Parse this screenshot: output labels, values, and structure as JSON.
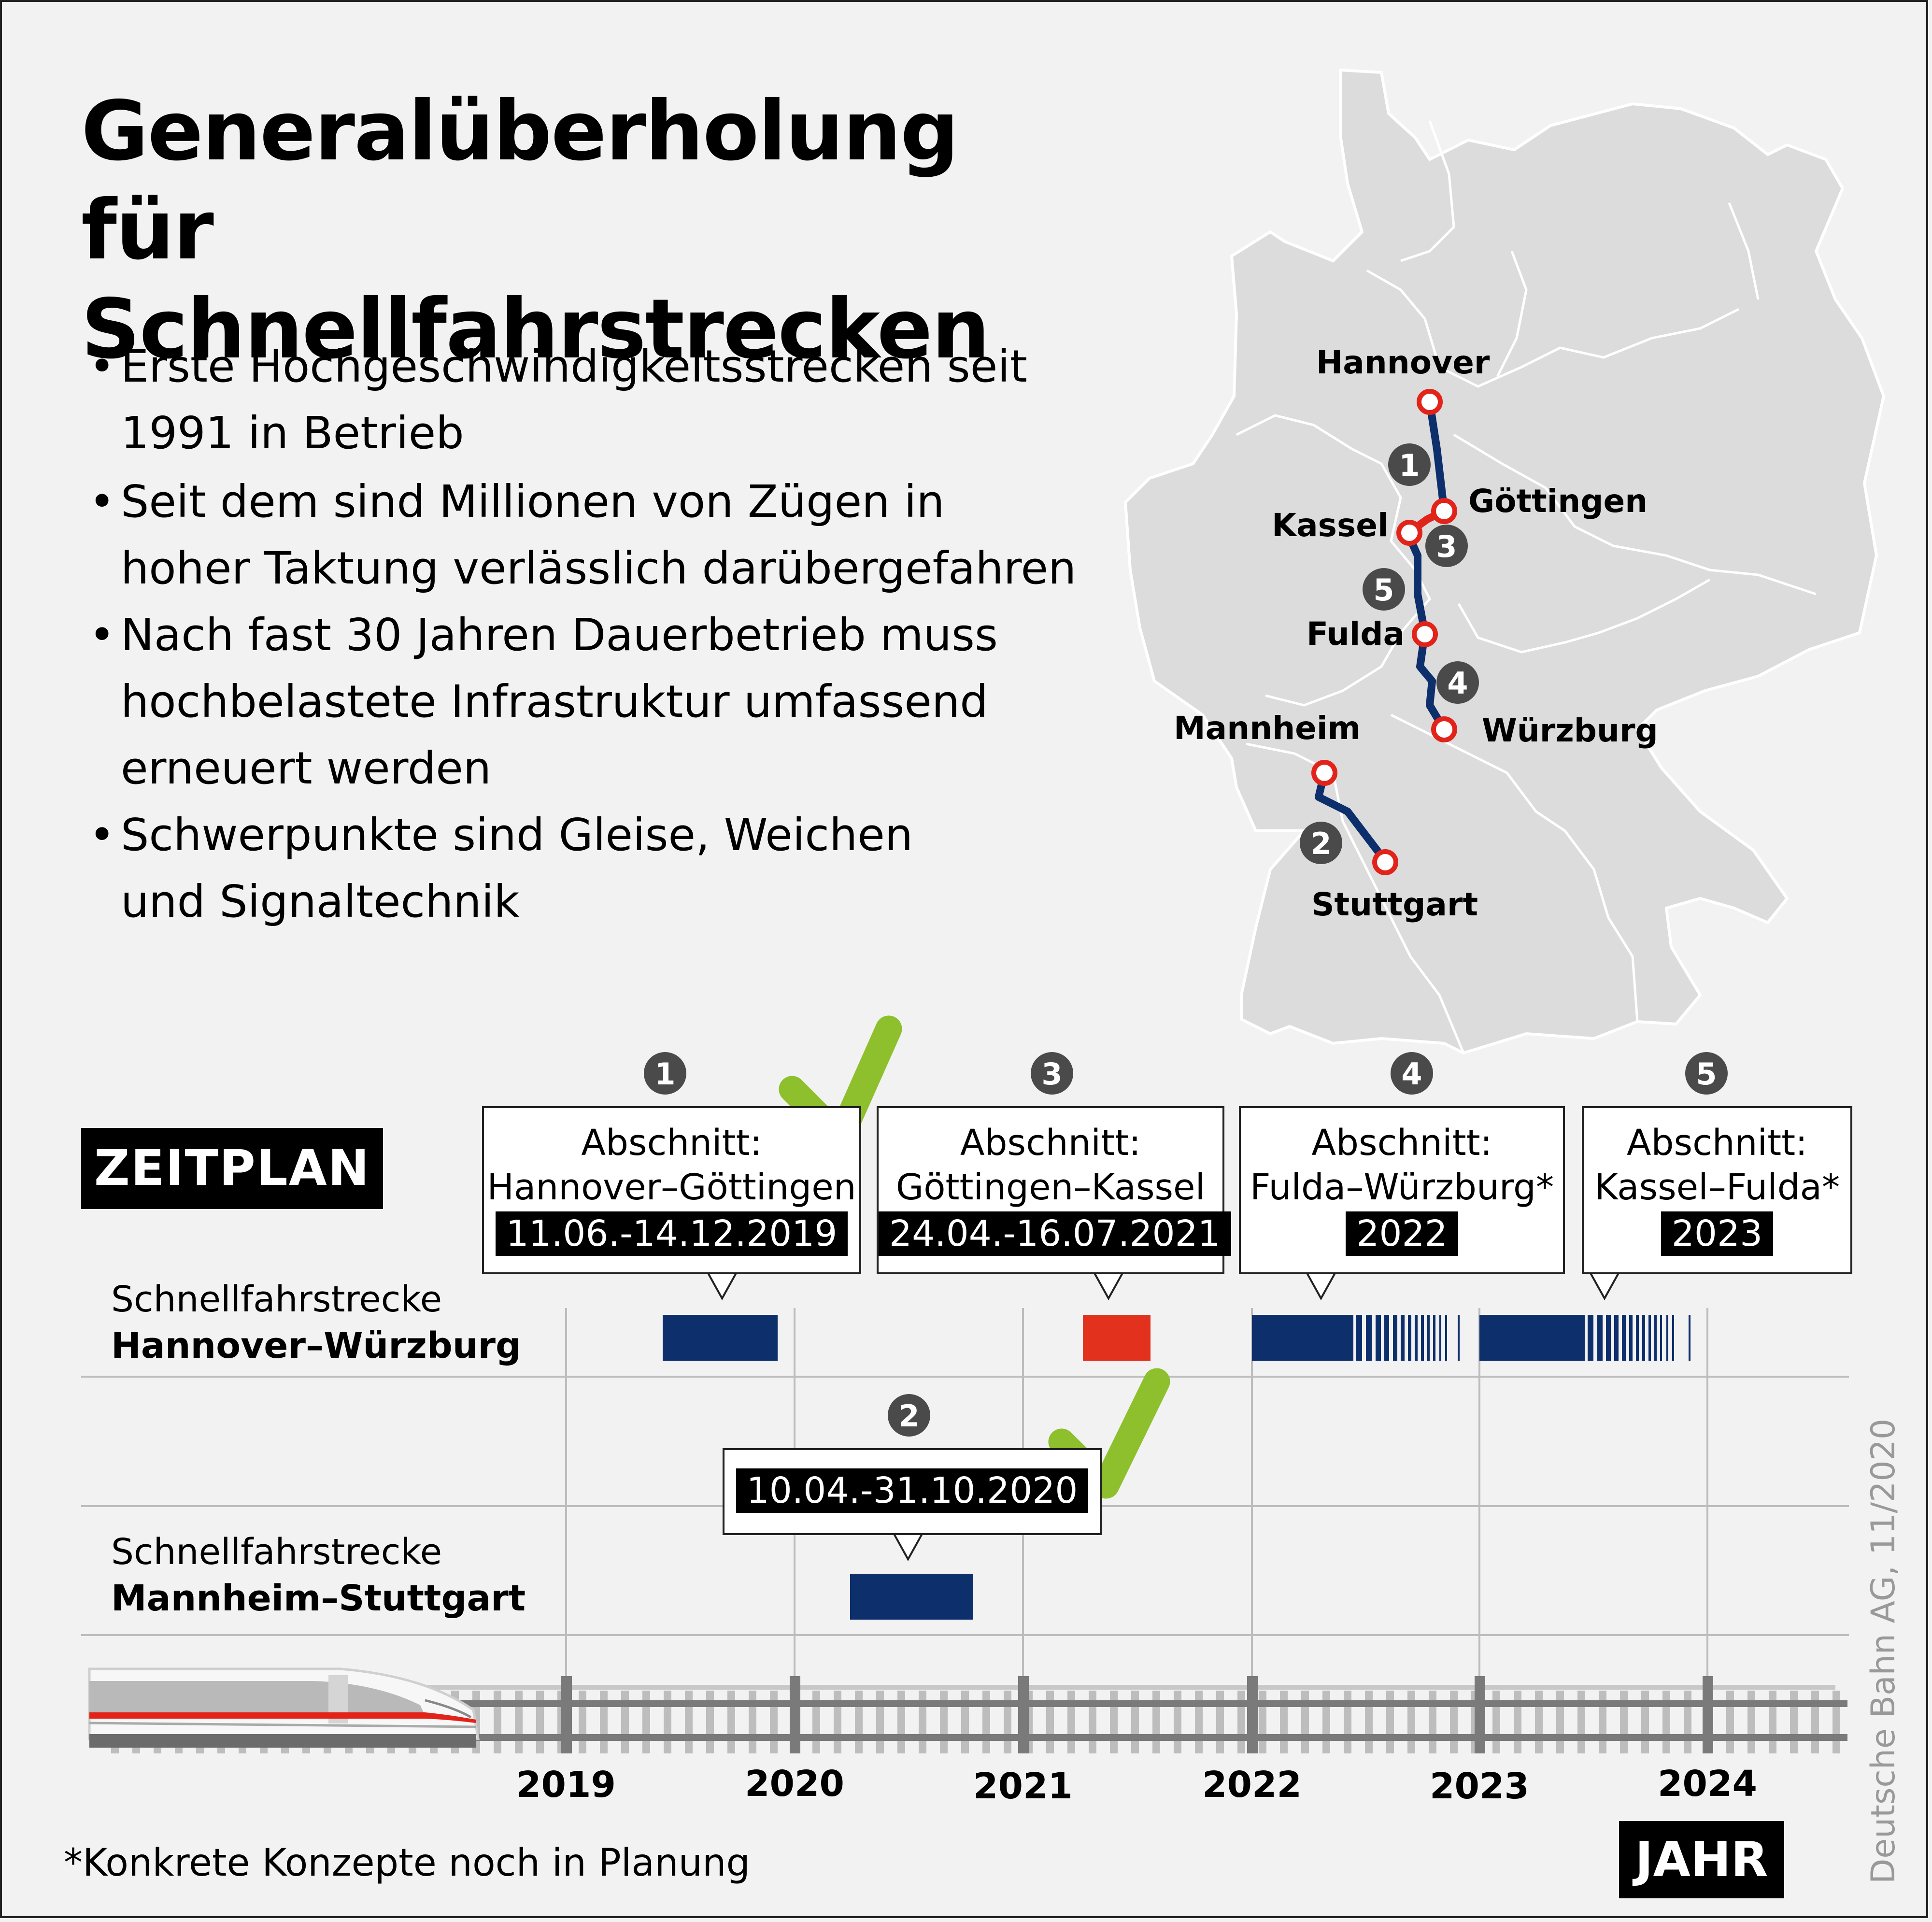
{
  "title": {
    "line1": "Generalüberholung für",
    "line2": "Schnellfahrstrecken"
  },
  "bullets": [
    {
      "line1": "Erste Hochgeschwindigkeitsstrecken seit",
      "line2": "1991 in Betrieb"
    },
    {
      "line1": "Seit dem sind Millionen von Zügen in",
      "line2": "hoher Taktung verlässlich darübergefahren"
    },
    {
      "line1": "Nach fast 30 Jahren Dauerbetrieb muss",
      "line2": "hochbelastete Infrastruktur umfassend",
      "line3": "erneuert werden"
    },
    {
      "line1": "Schwerpunkte sind Gleise, Weichen",
      "line2": "und Signaltechnik"
    }
  ],
  "map": {
    "cities": {
      "hannover": "Hannover",
      "goettingen": "Göttingen",
      "kassel": "Kassel",
      "fulda": "Fulda",
      "wuerzburg": "Würzburg",
      "mannheim": "Mannheim",
      "stuttgart": "Stuttgart"
    },
    "section_numbers": [
      "1",
      "2",
      "3",
      "4",
      "5"
    ],
    "route_color": "#0d2f6b",
    "city_marker_color": "#e2231a",
    "country_fill": "#dcdcdc"
  },
  "timeline": {
    "heading": "ZEITPLAN",
    "axis_label": "JAHR",
    "years": [
      "2019",
      "2020",
      "2021",
      "2022",
      "2023",
      "2024"
    ],
    "rows": {
      "row1": {
        "line1": "Schnellfahrstrecke",
        "line2": "Hannover–Würzburg"
      },
      "row2": {
        "line1": "Schnellfahrstrecke",
        "line2": "Mannheim–Stuttgart"
      }
    },
    "callouts": [
      {
        "number": "1",
        "line1": "Abschnitt:",
        "line2": "Hannover–Göttingen",
        "date": "11.06.-14.12.2019",
        "done": true
      },
      {
        "number": "3",
        "line1": "Abschnitt:",
        "line2": "Göttingen–Kassel",
        "date": "24.04.-16.07.2021",
        "done": true
      },
      {
        "number": "4",
        "line1": "Abschnitt:",
        "line2": "Fulda–Würzburg*",
        "date": "2022",
        "done": false
      },
      {
        "number": "5",
        "line1": "Abschnitt:",
        "line2": "Kassel–Fulda*",
        "date": "2023",
        "done": false
      },
      {
        "number": "2",
        "date": "10.04.-31.10.2020",
        "done": true
      }
    ],
    "colors": {
      "bar": "#0d2f6b",
      "active_bar": "#e2311d",
      "check": "#8dc02c",
      "badge": "#4a4a4a"
    }
  },
  "footnote": "*Konkrete Konzepte noch in Planung",
  "credit": "Deutsche Bahn AG, 11/2020"
}
